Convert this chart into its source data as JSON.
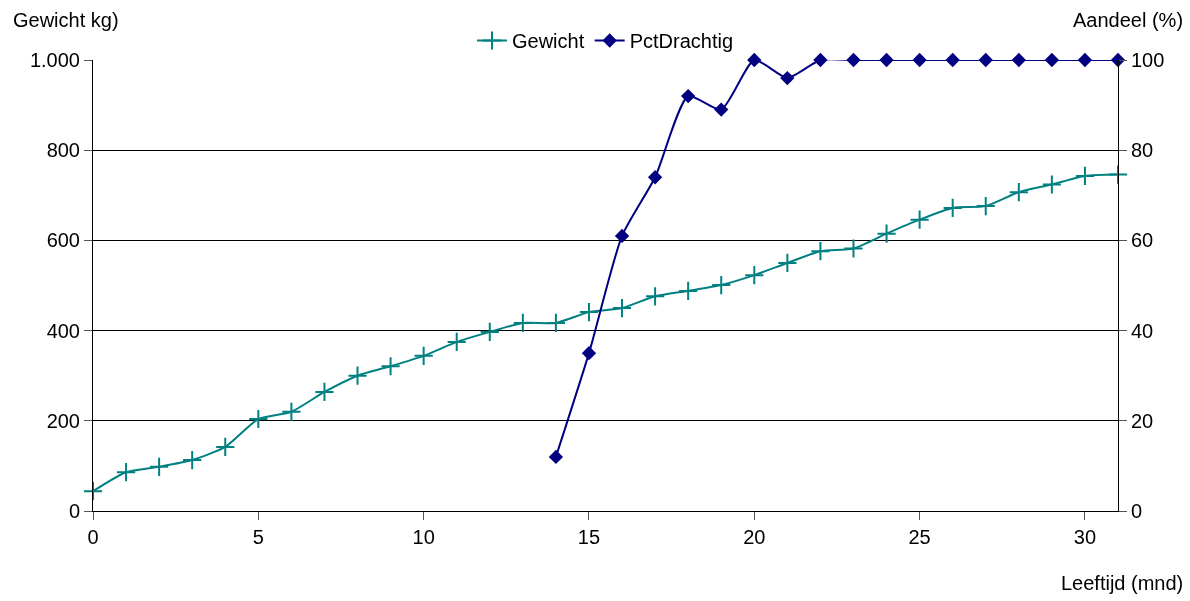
{
  "chart_data": {
    "type": "line",
    "xlabel": "Leeftijd (mnd)",
    "ylabel": "Gewicht kg)",
    "y2label": "Aandeel (%)",
    "x": [
      0,
      1,
      2,
      3,
      4,
      5,
      6,
      7,
      8,
      9,
      10,
      11,
      12,
      13,
      14,
      15,
      16,
      17,
      18,
      19,
      20,
      21,
      22,
      23,
      24,
      25,
      26,
      27,
      28,
      29,
      30,
      31
    ],
    "xlim": [
      0,
      31
    ],
    "xticks": [
      0,
      5,
      10,
      15,
      20,
      25,
      30
    ],
    "ylim": [
      0,
      1000
    ],
    "yticks": [
      0,
      200,
      400,
      600,
      800,
      {
        "value": 1000,
        "label": "1.000"
      }
    ],
    "y2lim": [
      0,
      100
    ],
    "y2ticks": [
      0,
      20,
      40,
      60,
      80,
      100
    ],
    "grid": "y",
    "legend": "top",
    "series": [
      {
        "name": "Gewicht",
        "color": "#008080",
        "marker": "cross",
        "values": [
          44,
          86,
          98,
          113,
          142,
          204,
          220,
          264,
          300,
          321,
          344,
          375,
          397,
          417,
          417,
          441,
          450,
          476,
          488,
          501,
          523,
          550,
          576,
          582,
          615,
          646,
          672,
          676,
          707,
          724,
          743,
          746
        ]
      },
      {
        "name": "PctDrachtig",
        "color": "#000080",
        "marker": "diamond",
        "axis": "y2",
        "x": [
          14,
          15,
          16,
          17,
          18,
          19,
          20,
          21,
          22,
          23,
          24,
          25,
          26,
          27,
          28,
          29,
          30,
          31
        ],
        "values": [
          12,
          35,
          61,
          74,
          92,
          89,
          100,
          96,
          100,
          100,
          100,
          100,
          100,
          100,
          100,
          100,
          100,
          100
        ]
      }
    ]
  }
}
